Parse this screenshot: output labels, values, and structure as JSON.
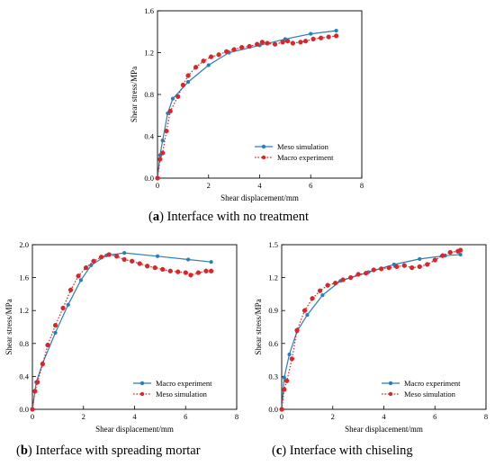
{
  "colors": {
    "blue": "#2a7fb8",
    "red": "#d8262a"
  },
  "captions": [
    {
      "letter": "a",
      "text": "Interface with no treatment"
    },
    {
      "letter": "b",
      "text": "Interface with spreading mortar"
    },
    {
      "letter": "c",
      "text": "Interface with chiseling"
    }
  ],
  "chart_data": [
    {
      "id": "a",
      "type": "line",
      "xlabel": "Shear displacement/mm",
      "ylabel": "Shear stress/MPa",
      "xlim": [
        0,
        8
      ],
      "ylim": [
        0,
        1.6
      ],
      "xticks": [
        "0",
        "2",
        "4",
        "6",
        "8"
      ],
      "yticks": [
        "0.0",
        "0.4",
        "0.8",
        "1.2",
        "1.6"
      ],
      "legend_position": "lower-right",
      "series": [
        {
          "name": "Meso simulation",
          "color": "blue",
          "style": "solid",
          "marker": "circle",
          "x": [
            0,
            0.1,
            0.2,
            0.4,
            0.6,
            1.2,
            2.0,
            2.8,
            4.0,
            5.0,
            6.0,
            7.0
          ],
          "y": [
            0,
            0.22,
            0.36,
            0.62,
            0.76,
            0.92,
            1.08,
            1.2,
            1.27,
            1.33,
            1.38,
            1.41
          ]
        },
        {
          "name": "Macro experiment",
          "color": "red",
          "style": "dotted",
          "marker": "circle",
          "x": [
            0,
            0.1,
            0.2,
            0.35,
            0.5,
            0.8,
            1.0,
            1.2,
            1.5,
            1.8,
            2.1,
            2.4,
            2.7,
            3.0,
            3.3,
            3.6,
            3.9,
            4.1,
            4.3,
            4.6,
            4.9,
            5.1,
            5.3,
            5.6,
            5.8,
            6.1,
            6.4,
            6.7,
            7.0
          ],
          "y": [
            0,
            0.18,
            0.24,
            0.45,
            0.64,
            0.78,
            0.89,
            0.98,
            1.06,
            1.12,
            1.16,
            1.18,
            1.21,
            1.23,
            1.25,
            1.26,
            1.28,
            1.3,
            1.29,
            1.28,
            1.3,
            1.31,
            1.29,
            1.3,
            1.31,
            1.33,
            1.34,
            1.35,
            1.36
          ]
        }
      ]
    },
    {
      "id": "b",
      "type": "line",
      "xlabel": "Shear displacement/mm",
      "ylabel": "Shear stress/MPa",
      "xlim": [
        0,
        8
      ],
      "ylim": [
        0,
        2.0
      ],
      "xticks": [
        "0",
        "2",
        "4",
        "6",
        "8"
      ],
      "yticks": [
        "0.0",
        "0.4",
        "0.8",
        "1.2",
        "1.6",
        "2.0"
      ],
      "legend_position": "lower-right",
      "series": [
        {
          "name": "Macro experiment",
          "color": "blue",
          "style": "solid",
          "marker": "circle",
          "x": [
            0,
            0.15,
            0.4,
            0.9,
            1.4,
            1.9,
            2.3,
            2.9,
            3.6,
            4.9,
            6.1,
            7.0
          ],
          "y": [
            0,
            0.33,
            0.56,
            0.93,
            1.27,
            1.57,
            1.75,
            1.87,
            1.9,
            1.86,
            1.82,
            1.79
          ]
        },
        {
          "name": "Meso simulation",
          "color": "red",
          "style": "dotted",
          "marker": "circle",
          "x": [
            0,
            0.1,
            0.2,
            0.4,
            0.6,
            0.9,
            1.2,
            1.5,
            1.8,
            2.1,
            2.4,
            2.7,
            3.0,
            3.3,
            3.6,
            3.9,
            4.2,
            4.5,
            4.8,
            5.1,
            5.4,
            5.7,
            6.0,
            6.2,
            6.5,
            6.8,
            7.0
          ],
          "y": [
            0,
            0.22,
            0.33,
            0.55,
            0.78,
            1.02,
            1.23,
            1.45,
            1.62,
            1.72,
            1.8,
            1.85,
            1.88,
            1.86,
            1.82,
            1.8,
            1.77,
            1.74,
            1.72,
            1.7,
            1.68,
            1.67,
            1.66,
            1.63,
            1.66,
            1.68,
            1.68
          ]
        }
      ]
    },
    {
      "id": "c",
      "type": "line",
      "xlabel": "Shear displacement/mm",
      "ylabel": "Shear stress/MPa",
      "xlim": [
        0,
        8
      ],
      "ylim": [
        0,
        1.5
      ],
      "xticks": [
        "0",
        "2",
        "4",
        "6",
        "8"
      ],
      "yticks": [
        "0.0",
        "0.3",
        "0.6",
        "0.9",
        "1.2",
        "1.5"
      ],
      "legend_position": "lower-right",
      "series": [
        {
          "name": "Macro experiment",
          "color": "blue",
          "style": "solid",
          "marker": "circle",
          "x": [
            0,
            0.1,
            0.3,
            0.6,
            1.0,
            1.6,
            2.3,
            3.4,
            4.4,
            5.4,
            6.4,
            7.0
          ],
          "y": [
            0,
            0.29,
            0.5,
            0.71,
            0.86,
            1.04,
            1.17,
            1.25,
            1.32,
            1.37,
            1.4,
            1.41
          ]
        },
        {
          "name": "Meso simulation",
          "color": "red",
          "style": "dotted",
          "marker": "circle",
          "x": [
            0,
            0.1,
            0.2,
            0.4,
            0.6,
            0.9,
            1.2,
            1.5,
            1.8,
            2.1,
            2.4,
            2.7,
            3.0,
            3.3,
            3.6,
            3.9,
            4.2,
            4.5,
            4.8,
            5.1,
            5.4,
            5.7,
            6.0,
            6.3,
            6.6,
            6.9,
            7.0
          ],
          "y": [
            0,
            0.18,
            0.26,
            0.46,
            0.72,
            0.9,
            1.01,
            1.08,
            1.13,
            1.15,
            1.18,
            1.2,
            1.23,
            1.24,
            1.27,
            1.28,
            1.29,
            1.3,
            1.31,
            1.29,
            1.3,
            1.32,
            1.36,
            1.4,
            1.43,
            1.44,
            1.45
          ]
        }
      ]
    }
  ]
}
